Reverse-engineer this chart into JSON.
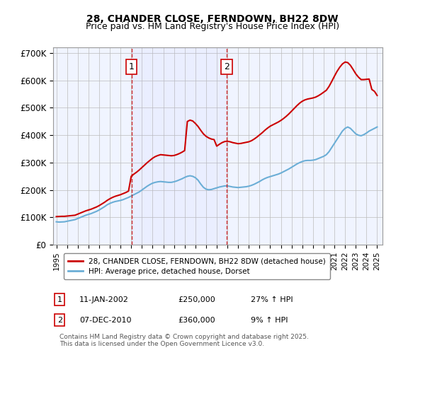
{
  "title": "28, CHANDER CLOSE, FERNDOWN, BH22 8DW",
  "subtitle": "Price paid vs. HM Land Registry's House Price Index (HPI)",
  "background_color": "#f0f4ff",
  "plot_bg_color": "#f0f4ff",
  "ylim": [
    0,
    720000
  ],
  "yticks": [
    0,
    100000,
    200000,
    300000,
    400000,
    500000,
    600000,
    700000
  ],
  "ytick_labels": [
    "£0",
    "£100K",
    "£200K",
    "£300K",
    "£400K",
    "£500K",
    "£600K",
    "£700K"
  ],
  "xlabel_years": [
    "1995",
    "1996",
    "1997",
    "1998",
    "1999",
    "2000",
    "2001",
    "2002",
    "2003",
    "2004",
    "2005",
    "2006",
    "2007",
    "2008",
    "2009",
    "2010",
    "2011",
    "2012",
    "2013",
    "2014",
    "2015",
    "2016",
    "2017",
    "2018",
    "2019",
    "2020",
    "2021",
    "2022",
    "2023",
    "2024",
    "2025"
  ],
  "hpi_color": "#6baed6",
  "price_color": "#cc0000",
  "vline_color": "#cc0000",
  "vline_style": "--",
  "marker1_year": 2002.03,
  "marker2_year": 2010.92,
  "marker1_label": "1",
  "marker2_label": "2",
  "legend_line1": "28, CHANDER CLOSE, FERNDOWN, BH22 8DW (detached house)",
  "legend_line2": "HPI: Average price, detached house, Dorset",
  "annotation1": "1   11-JAN-2002      £250,000       27% ↑ HPI",
  "annotation2": "2   07-DEC-2010      £360,000         9% ↑ HPI",
  "footer": "Contains HM Land Registry data © Crown copyright and database right 2025.\nThis data is licensed under the Open Government Licence v3.0.",
  "hpi_data_x": [
    1995.0,
    1995.25,
    1995.5,
    1995.75,
    1996.0,
    1996.25,
    1996.5,
    1996.75,
    1997.0,
    1997.25,
    1997.5,
    1997.75,
    1998.0,
    1998.25,
    1998.5,
    1998.75,
    1999.0,
    1999.25,
    1999.5,
    1999.75,
    2000.0,
    2000.25,
    2000.5,
    2000.75,
    2001.0,
    2001.25,
    2001.5,
    2001.75,
    2002.0,
    2002.25,
    2002.5,
    2002.75,
    2003.0,
    2003.25,
    2003.5,
    2003.75,
    2004.0,
    2004.25,
    2004.5,
    2004.75,
    2005.0,
    2005.25,
    2005.5,
    2005.75,
    2006.0,
    2006.25,
    2006.5,
    2006.75,
    2007.0,
    2007.25,
    2007.5,
    2007.75,
    2008.0,
    2008.25,
    2008.5,
    2008.75,
    2009.0,
    2009.25,
    2009.5,
    2009.75,
    2010.0,
    2010.25,
    2010.5,
    2010.75,
    2011.0,
    2011.25,
    2011.5,
    2011.75,
    2012.0,
    2012.25,
    2012.5,
    2012.75,
    2013.0,
    2013.25,
    2013.5,
    2013.75,
    2014.0,
    2014.25,
    2014.5,
    2014.75,
    2015.0,
    2015.25,
    2015.5,
    2015.75,
    2016.0,
    2016.25,
    2016.5,
    2016.75,
    2017.0,
    2017.25,
    2017.5,
    2017.75,
    2018.0,
    2018.25,
    2018.5,
    2018.75,
    2019.0,
    2019.25,
    2019.5,
    2019.75,
    2020.0,
    2020.25,
    2020.5,
    2020.75,
    2021.0,
    2021.25,
    2021.5,
    2021.75,
    2022.0,
    2022.25,
    2022.5,
    2022.75,
    2023.0,
    2023.25,
    2023.5,
    2023.75,
    2024.0,
    2024.25,
    2024.5,
    2024.75,
    2025.0
  ],
  "hpi_data_y": [
    84000,
    83000,
    83500,
    84000,
    86000,
    88000,
    90000,
    92000,
    96000,
    100000,
    104000,
    108000,
    111000,
    114000,
    118000,
    122000,
    127000,
    133000,
    139000,
    146000,
    151000,
    155000,
    158000,
    160000,
    162000,
    165000,
    169000,
    173000,
    178000,
    183000,
    188000,
    193000,
    200000,
    207000,
    214000,
    220000,
    225000,
    228000,
    230000,
    231000,
    230000,
    229000,
    228000,
    228000,
    230000,
    233000,
    237000,
    241000,
    246000,
    250000,
    252000,
    250000,
    245000,
    236000,
    222000,
    210000,
    203000,
    201000,
    202000,
    205000,
    208000,
    211000,
    213000,
    215000,
    215000,
    213000,
    211000,
    210000,
    209000,
    210000,
    211000,
    212000,
    214000,
    217000,
    221000,
    226000,
    231000,
    237000,
    242000,
    246000,
    249000,
    252000,
    255000,
    258000,
    262000,
    267000,
    272000,
    277000,
    283000,
    289000,
    295000,
    300000,
    304000,
    307000,
    308000,
    308000,
    309000,
    311000,
    315000,
    319000,
    323000,
    329000,
    340000,
    355000,
    370000,
    385000,
    400000,
    415000,
    425000,
    430000,
    425000,
    415000,
    405000,
    400000,
    398000,
    402000,
    408000,
    415000,
    420000,
    425000,
    430000
  ],
  "price_data_x": [
    1995.0,
    1995.25,
    1995.5,
    1995.75,
    1996.0,
    1996.25,
    1996.5,
    1996.75,
    1997.0,
    1997.25,
    1997.5,
    1997.75,
    1998.0,
    1998.25,
    1998.5,
    1998.75,
    1999.0,
    1999.25,
    1999.5,
    1999.75,
    2000.0,
    2000.25,
    2000.5,
    2000.75,
    2001.0,
    2001.25,
    2001.5,
    2001.75,
    2002.0,
    2002.25,
    2002.5,
    2002.75,
    2003.0,
    2003.25,
    2003.5,
    2003.75,
    2004.0,
    2004.25,
    2004.5,
    2004.75,
    2005.0,
    2005.25,
    2005.5,
    2005.75,
    2006.0,
    2006.25,
    2006.5,
    2006.75,
    2007.0,
    2007.25,
    2007.5,
    2007.75,
    2008.0,
    2008.25,
    2008.5,
    2008.75,
    2009.0,
    2009.25,
    2009.5,
    2009.75,
    2010.0,
    2010.25,
    2010.5,
    2010.75,
    2011.0,
    2011.25,
    2011.5,
    2011.75,
    2012.0,
    2012.25,
    2012.5,
    2012.75,
    2013.0,
    2013.25,
    2013.5,
    2013.75,
    2014.0,
    2014.25,
    2014.5,
    2014.75,
    2015.0,
    2015.25,
    2015.5,
    2015.75,
    2016.0,
    2016.25,
    2016.5,
    2016.75,
    2017.0,
    2017.25,
    2017.5,
    2017.75,
    2018.0,
    2018.25,
    2018.5,
    2018.75,
    2019.0,
    2019.25,
    2019.5,
    2019.75,
    2020.0,
    2020.25,
    2020.5,
    2020.75,
    2021.0,
    2021.25,
    2021.5,
    2021.75,
    2022.0,
    2022.25,
    2022.5,
    2022.75,
    2023.0,
    2023.25,
    2023.5,
    2023.75,
    2024.0,
    2024.25,
    2024.5,
    2024.75,
    2025.0
  ],
  "price_data_y": [
    103000,
    103500,
    104000,
    104000,
    105000,
    106000,
    107000,
    108000,
    112000,
    116000,
    120000,
    124000,
    127000,
    130000,
    134000,
    138000,
    143000,
    149000,
    155000,
    162000,
    168000,
    173000,
    177000,
    180000,
    183000,
    187000,
    191000,
    196000,
    250000,
    258000,
    265000,
    273000,
    282000,
    291000,
    300000,
    308000,
    316000,
    322000,
    326000,
    329000,
    328000,
    327000,
    326000,
    325000,
    326000,
    329000,
    333000,
    338000,
    344000,
    450000,
    455000,
    452000,
    443000,
    432000,
    418000,
    405000,
    396000,
    390000,
    386000,
    384000,
    360000,
    367000,
    373000,
    377000,
    378000,
    376000,
    373000,
    371000,
    369000,
    370000,
    372000,
    374000,
    376000,
    380000,
    386000,
    393000,
    401000,
    409000,
    418000,
    426000,
    433000,
    438000,
    443000,
    448000,
    454000,
    461000,
    469000,
    478000,
    488000,
    498000,
    508000,
    517000,
    524000,
    529000,
    532000,
    534000,
    536000,
    539000,
    544000,
    550000,
    557000,
    564000,
    578000,
    596000,
    615000,
    633000,
    648000,
    660000,
    667000,
    665000,
    655000,
    640000,
    624000,
    612000,
    603000,
    603000,
    604000,
    605000,
    567000,
    560000,
    545000
  ]
}
